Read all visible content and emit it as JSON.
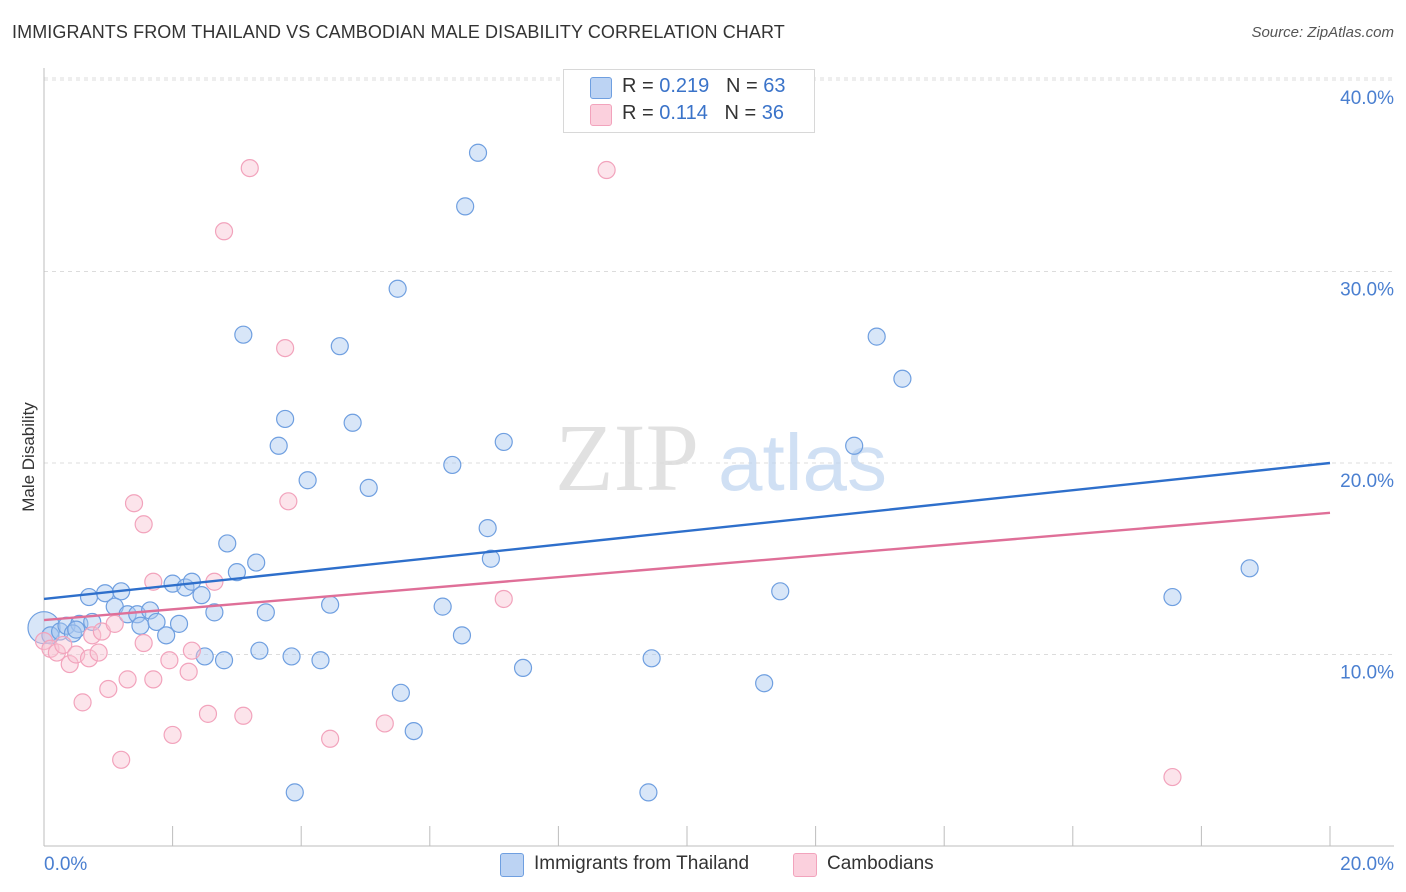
{
  "header": {
    "title": "IMMIGRANTS FROM THAILAND VS CAMBODIAN MALE DISABILITY CORRELATION CHART",
    "source": "Source: ZipAtlas.com"
  },
  "watermark": {
    "zip": "ZIP",
    "atlas": "atlas"
  },
  "legend_top": [
    {
      "r_label": "R = ",
      "r_value": "0.219",
      "n_label": "N = ",
      "n_value": "63"
    },
    {
      "r_label": "R = ",
      "r_value": "0.114",
      "n_label": "N = ",
      "n_value": "36"
    }
  ],
  "chart_data": {
    "type": "scatter",
    "title": "IMMIGRANTS FROM THAILAND VS CAMBODIAN MALE DISABILITY CORRELATION CHART",
    "xlabel": "",
    "ylabel": "Male Disability",
    "xlim": [
      0,
      20
    ],
    "ylim": [
      0,
      42
    ],
    "x_tick_labels": [
      "0.0%",
      "20.0%"
    ],
    "y_ticks": [
      10,
      20,
      30,
      40
    ],
    "y_tick_labels": [
      "10.0%",
      "20.0%",
      "30.0%",
      "40.0%"
    ],
    "colors": {
      "thailand": "#6f9fe0",
      "thailand_line": "#2e6fcb",
      "cambodia": "#f2a3bc",
      "cambodia_line": "#df6f98"
    },
    "series": [
      {
        "name": "Immigrants from Thailand",
        "R": 0.219,
        "N": 63,
        "trend": {
          "x0": 0,
          "y0": 12.9,
          "x1": 20,
          "y1": 20.0
        },
        "points": [
          [
            0.0,
            11.4
          ],
          [
            0.1,
            11.0
          ],
          [
            0.25,
            11.2
          ],
          [
            0.35,
            11.5
          ],
          [
            0.55,
            11.6
          ],
          [
            0.45,
            11.1
          ],
          [
            0.75,
            11.7
          ],
          [
            0.7,
            13.0
          ],
          [
            0.95,
            13.2
          ],
          [
            1.2,
            13.3
          ],
          [
            1.1,
            12.5
          ],
          [
            1.3,
            12.1
          ],
          [
            1.45,
            12.1
          ],
          [
            1.65,
            12.3
          ],
          [
            1.5,
            11.5
          ],
          [
            1.75,
            11.7
          ],
          [
            1.9,
            11.0
          ],
          [
            2.0,
            13.7
          ],
          [
            2.1,
            11.6
          ],
          [
            2.2,
            13.5
          ],
          [
            2.3,
            13.8
          ],
          [
            2.45,
            13.1
          ],
          [
            2.5,
            9.9
          ],
          [
            2.65,
            12.2
          ],
          [
            2.85,
            15.8
          ],
          [
            2.8,
            9.7
          ],
          [
            3.0,
            14.3
          ],
          [
            3.1,
            26.7
          ],
          [
            3.3,
            14.8
          ],
          [
            3.35,
            10.2
          ],
          [
            3.45,
            12.2
          ],
          [
            3.65,
            20.9
          ],
          [
            3.75,
            22.3
          ],
          [
            3.85,
            9.9
          ],
          [
            3.9,
            2.8
          ],
          [
            4.1,
            19.1
          ],
          [
            4.3,
            9.7
          ],
          [
            4.45,
            12.6
          ],
          [
            4.6,
            26.1
          ],
          [
            4.8,
            22.1
          ],
          [
            5.05,
            18.7
          ],
          [
            5.5,
            29.1
          ],
          [
            5.55,
            8.0
          ],
          [
            5.75,
            6.0
          ],
          [
            6.2,
            12.5
          ],
          [
            6.35,
            19.9
          ],
          [
            6.5,
            11.0
          ],
          [
            6.55,
            33.4
          ],
          [
            6.75,
            36.2
          ],
          [
            6.9,
            16.6
          ],
          [
            6.95,
            15.0
          ],
          [
            7.15,
            21.1
          ],
          [
            7.45,
            9.3
          ],
          [
            9.4,
            2.8
          ],
          [
            9.45,
            9.8
          ],
          [
            11.2,
            8.5
          ],
          [
            11.45,
            13.3
          ],
          [
            12.6,
            20.9
          ],
          [
            12.95,
            26.6
          ],
          [
            13.35,
            24.4
          ],
          [
            17.55,
            13.0
          ],
          [
            18.75,
            14.5
          ],
          [
            0.5,
            11.3
          ]
        ]
      },
      {
        "name": "Cambodians",
        "R": 0.114,
        "N": 36,
        "trend": {
          "x0": 0,
          "y0": 11.8,
          "x1": 20,
          "y1": 17.4
        },
        "points": [
          [
            0.0,
            10.7
          ],
          [
            0.1,
            10.3
          ],
          [
            0.2,
            10.1
          ],
          [
            0.3,
            10.5
          ],
          [
            0.4,
            9.5
          ],
          [
            0.5,
            10.0
          ],
          [
            0.6,
            7.5
          ],
          [
            0.7,
            9.8
          ],
          [
            0.75,
            11.0
          ],
          [
            0.85,
            10.1
          ],
          [
            0.9,
            11.2
          ],
          [
            1.0,
            8.2
          ],
          [
            1.1,
            11.6
          ],
          [
            1.2,
            4.5
          ],
          [
            1.3,
            8.7
          ],
          [
            1.4,
            17.9
          ],
          [
            1.55,
            10.6
          ],
          [
            1.55,
            16.8
          ],
          [
            1.7,
            8.7
          ],
          [
            1.7,
            13.8
          ],
          [
            1.95,
            9.7
          ],
          [
            2.0,
            5.8
          ],
          [
            2.25,
            9.1
          ],
          [
            2.3,
            10.2
          ],
          [
            2.55,
            6.9
          ],
          [
            2.65,
            13.8
          ],
          [
            2.8,
            32.1
          ],
          [
            3.1,
            6.8
          ],
          [
            3.2,
            35.4
          ],
          [
            3.75,
            26.0
          ],
          [
            3.8,
            18.0
          ],
          [
            4.45,
            5.6
          ],
          [
            5.3,
            6.4
          ],
          [
            7.15,
            12.9
          ],
          [
            8.75,
            35.3
          ],
          [
            17.55,
            3.6
          ]
        ]
      }
    ]
  },
  "legend_bottom": [
    {
      "label": "Immigrants from Thailand"
    },
    {
      "label": "Cambodians"
    }
  ]
}
